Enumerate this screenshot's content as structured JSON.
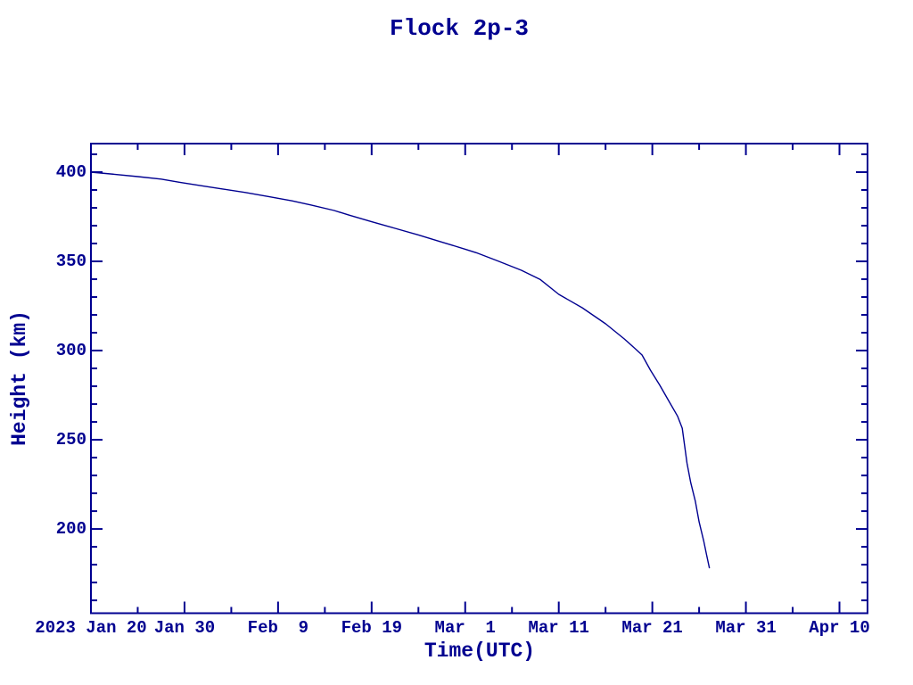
{
  "chart_data": {
    "type": "line",
    "title": "Flock 2p-3",
    "xlabel": "Time(UTC)",
    "ylabel": "Height (km)",
    "background_color": "#ffffff",
    "accent_color": "#000090",
    "grid": false,
    "legend": false,
    "x_axis": {
      "unit": "date",
      "year": "2023",
      "tick_labels": [
        "2023 Jan 20",
        "Jan 30",
        "Feb  9",
        "Feb 19",
        "Mar  1",
        "Mar 11",
        "Mar 21",
        "Mar 31",
        "Apr 10"
      ],
      "tick_days": [
        0,
        10,
        20,
        30,
        40,
        50,
        60,
        70,
        80
      ],
      "minor_tick_days": [
        5,
        15,
        25,
        35,
        45,
        55,
        65,
        75
      ],
      "range_days": [
        0,
        83
      ]
    },
    "y_axis": {
      "unit": "km",
      "tick_values": [
        400,
        350,
        300,
        250,
        200
      ],
      "minor_step": 10,
      "range": [
        152.8,
        416
      ]
    },
    "series": [
      {
        "name": "Flock 2p-3 height",
        "x_days_after_jan20_2023": [
          0,
          2.5,
          5,
          7.5,
          9.5,
          12,
          14,
          16.5,
          19,
          21.5,
          23.5,
          26,
          27.6,
          30,
          32.5,
          35,
          37.5,
          40,
          41.2,
          43.5,
          46,
          48,
          50,
          52.5,
          55,
          57,
          58,
          58.9,
          59.8,
          60.8,
          61.7,
          62.7,
          63.2,
          63.7,
          64.1,
          64.6,
          65.0,
          65.5,
          65.8,
          66.1
        ],
        "height_km": [
          400,
          398.8,
          397.5,
          396.1,
          394.3,
          392.2,
          390.6,
          388.6,
          386.3,
          383.9,
          381.6,
          378.5,
          375.9,
          372.2,
          368.5,
          364.8,
          360.8,
          356.8,
          354.8,
          350.2,
          345.0,
          339.9,
          331.5,
          324.0,
          315.0,
          306.5,
          301.8,
          297.5,
          289.0,
          280.6,
          272.3,
          263.2,
          256.5,
          237.0,
          226.0,
          215.5,
          204.0,
          193.0,
          185.5,
          178.0
        ]
      }
    ]
  }
}
